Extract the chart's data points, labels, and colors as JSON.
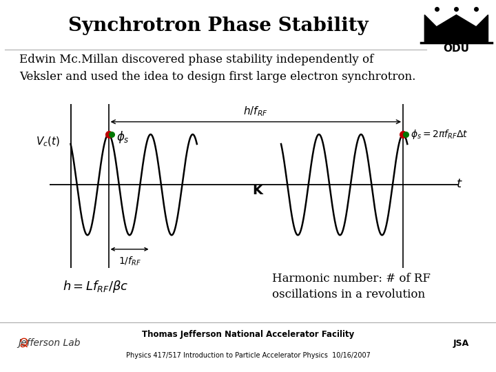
{
  "title": "Synchrotron Phase Stability",
  "title_fontsize": 20,
  "body_text": "Edwin Mc.Millan discovered phase stability independently of\nVeksler and used the idea to design first large electron synchrotron.",
  "body_fontsize": 12,
  "wave_color": "#000000",
  "dot_color_red": "#bb0000",
  "dot_color_green": "#007700",
  "axis_color": "#000000",
  "bg_color": "#ffffff",
  "footer_text": "Thomas Jefferson National Accelerator Facility",
  "footer_sub": "Physics 417/517 Introduction to Particle Accelerator Physics  10/16/2007",
  "annotation_Vc": "$V_c(t)$",
  "annotation_h_fRF": "$h / f_{RF}$",
  "annotation_phi_s_left": "$\\phi_s$",
  "annotation_phi_s_right": "$\\phi_s = 2\\pi f_{RF}\\Delta t$",
  "annotation_t": "$t$",
  "annotation_k": "$\\mathbf{K}$",
  "annotation_1_fRF": "$1/ f_{RF}$",
  "annotation_h_eq": "$h = Lf_{RF} / \\beta c$",
  "annotation_harmonic": "Harmonic number: # of RF\noscillations in a revolution",
  "footer_facility": "Thomas Jefferson National Accelerator Facility",
  "footer_course": "Physics 417/517 Introduction to Particle Accelerator Physics  10/16/2007"
}
